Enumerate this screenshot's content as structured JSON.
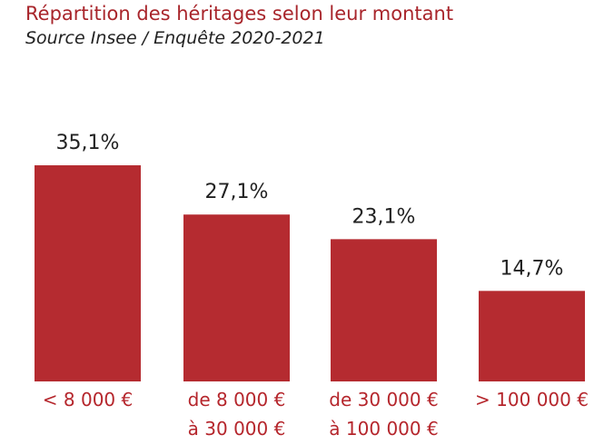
{
  "title": "Répartition des héritages selon leur montant",
  "subtitle": "Source Insee / Enquête 2020-2021",
  "colors": {
    "bar": "#b52b30",
    "title": "#a8252b",
    "category_label": "#b5262c",
    "value_label": "#222222"
  },
  "chart_data": {
    "type": "bar",
    "title": "Répartition des héritages selon leur montant",
    "subtitle": "Source Insee / Enquête 2020-2021",
    "categories": [
      [
        "< 8 000 €"
      ],
      [
        "de 8 000 €",
        "à 30 000 €"
      ],
      [
        "de 30 000 €",
        "à 100 000 €"
      ],
      [
        "> 100 000 €"
      ]
    ],
    "values": [
      35.1,
      27.1,
      23.1,
      14.7
    ],
    "value_labels": [
      "35,1%",
      "27,1%",
      "23,1%",
      "14,7%"
    ],
    "unit": "%",
    "ylim": [
      0,
      35.1
    ],
    "grid": false,
    "legend": "none"
  }
}
